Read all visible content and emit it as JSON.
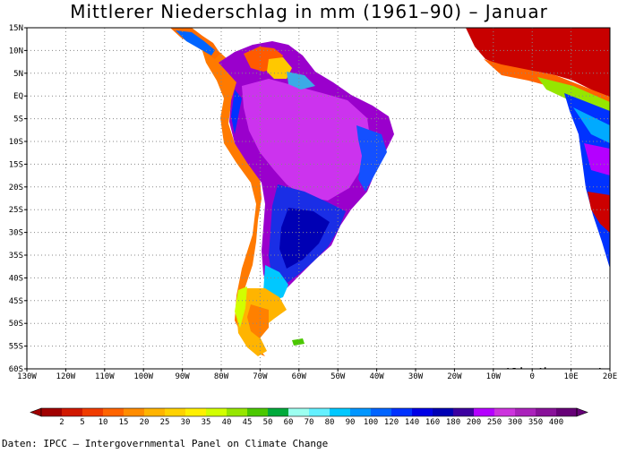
{
  "title": "Mittlerer Niederschlag in mm (1961–90) – Januar",
  "watermark": "www.klimadiagramme.de",
  "source": "Daten: IPCC – Intergovernmental Panel on Climate Change",
  "map": {
    "lon_range": [
      -130,
      20
    ],
    "lat_range": [
      -60,
      15
    ],
    "lat_labels": [
      "15N",
      "10N",
      "5N",
      "EQ",
      "5S",
      "10S",
      "15S",
      "20S",
      "25S",
      "30S",
      "35S",
      "40S",
      "45S",
      "50S",
      "55S",
      "60S"
    ],
    "lon_labels": [
      "130W",
      "120W",
      "110W",
      "100W",
      "90W",
      "80W",
      "70W",
      "60W",
      "50W",
      "40W",
      "30W",
      "20W",
      "10W",
      "0",
      "10E",
      "20E"
    ],
    "grid": true,
    "ocean_color": "#ffffff"
  },
  "legend": {
    "labels": [
      "2",
      "5",
      "10",
      "15",
      "20",
      "25",
      "30",
      "35",
      "40",
      "45",
      "50",
      "60",
      "70",
      "80",
      "90",
      "100",
      "120",
      "140",
      "160",
      "180",
      "200",
      "250",
      "300",
      "350",
      "400"
    ],
    "colors": [
      "#a00000",
      "#d01800",
      "#f03c00",
      "#ff6400",
      "#ff8c00",
      "#ffb400",
      "#ffd200",
      "#fff000",
      "#d2ff00",
      "#96e600",
      "#4bc800",
      "#00aa3c",
      "#9cfff0",
      "#64f0ff",
      "#00c8ff",
      "#0096ff",
      "#0064ff",
      "#0032ff",
      "#0000e6",
      "#0000b4",
      "#3c00a0",
      "#b400ff",
      "#cc33dd",
      "#aa22bb",
      "#881199",
      "#660077"
    ]
  }
}
